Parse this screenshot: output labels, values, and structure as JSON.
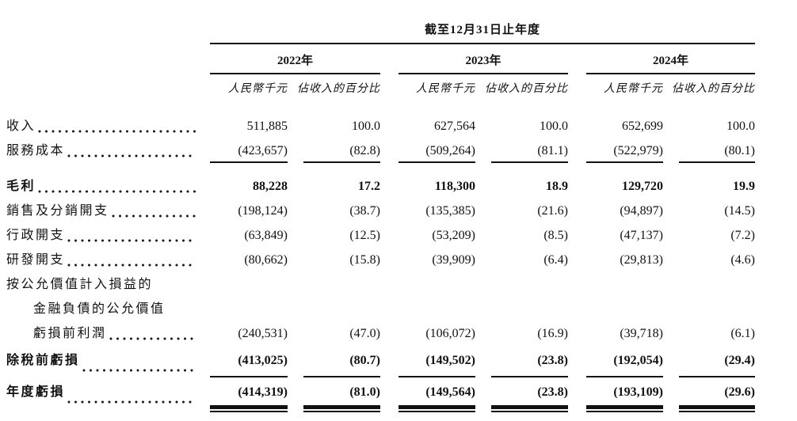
{
  "table": {
    "title": "截至12月31日止年度",
    "years": [
      "2022年",
      "2023年",
      "2024年"
    ],
    "unit_label": "人民幣千元",
    "pct_label": "佔收入的百分比",
    "rows": [
      {
        "label": "收入",
        "values": [
          "511,885",
          "100.0",
          "627,564",
          "100.0",
          "652,699",
          "100.0"
        ]
      },
      {
        "label": "服務成本",
        "values": [
          "(423,657)",
          "(82.8)",
          "(509,264)",
          "(81.1)",
          "(522,979)",
          "(80.1)"
        ]
      },
      {
        "label": "毛利",
        "values": [
          "88,228",
          "17.2",
          "118,300",
          "18.9",
          "129,720",
          "19.9"
        ]
      },
      {
        "label": "銷售及分銷開支",
        "values": [
          "(198,124)",
          "(38.7)",
          "(135,385)",
          "(21.6)",
          "(94,897)",
          "(14.5)"
        ]
      },
      {
        "label": "行政開支",
        "values": [
          "(63,849)",
          "(12.5)",
          "(53,209)",
          "(8.5)",
          "(47,137)",
          "(7.2)"
        ]
      },
      {
        "label": "研發開支",
        "values": [
          "(80,662)",
          "(15.8)",
          "(39,909)",
          "(6.4)",
          "(29,813)",
          "(4.6)"
        ]
      },
      {
        "label": "按公允價值計入損益的"
      },
      {
        "label": "金融負債的公允價值"
      },
      {
        "label": "虧損前利潤",
        "values": [
          "(240,531)",
          "(47.0)",
          "(106,072)",
          "(16.9)",
          "(39,718)",
          "(6.1)"
        ]
      },
      {
        "label": "除稅前虧損",
        "values": [
          "(413,025)",
          "(80.7)",
          "(149,502)",
          "(23.8)",
          "(192,054)",
          "(29.4)"
        ]
      },
      {
        "label": "年度虧損",
        "values": [
          "(414,319)",
          "(81.0)",
          "(149,564)",
          "(23.8)",
          "(193,109)",
          "(29.6)"
        ]
      }
    ]
  }
}
